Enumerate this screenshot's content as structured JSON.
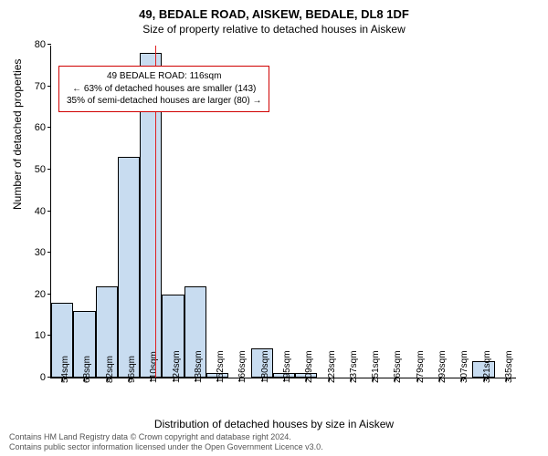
{
  "title": {
    "main": "49, BEDALE ROAD, AISKEW, BEDALE, DL8 1DF",
    "sub": "Size of property relative to detached houses in Aiskew"
  },
  "axes": {
    "ylabel": "Number of detached properties",
    "xlabel": "Distribution of detached houses by size in Aiskew",
    "ylim": [
      0,
      80
    ],
    "ytick_step": 10,
    "label_fontsize": 12,
    "tick_fontsize": 11
  },
  "chart": {
    "type": "histogram",
    "bar_fill": "#c8dcf0",
    "bar_border": "#000000",
    "background_color": "#ffffff",
    "categories": [
      "54sqm",
      "68sqm",
      "82sqm",
      "96sqm",
      "110sqm",
      "124sqm",
      "138sqm",
      "152sqm",
      "166sqm",
      "180sqm",
      "195sqm",
      "209sqm",
      "223sqm",
      "237sqm",
      "251sqm",
      "265sqm",
      "279sqm",
      "293sqm",
      "307sqm",
      "321sqm",
      "335sqm"
    ],
    "values": [
      18,
      16,
      22,
      53,
      78,
      20,
      22,
      1,
      0,
      7,
      1,
      1,
      0,
      0,
      0,
      0,
      0,
      0,
      0,
      4,
      0
    ]
  },
  "marker": {
    "color": "#e02020",
    "position_index": 4.2,
    "annotation": {
      "line1": "49 BEDALE ROAD: 116sqm",
      "line2": "← 63% of detached houses are smaller (143)",
      "line3": "35% of semi-detached houses are larger (80) →"
    },
    "annotation_border": "#d00000"
  },
  "attribution": {
    "line1": "Contains HM Land Registry data © Crown copyright and database right 2024.",
    "line2": "Contains public sector information licensed under the Open Government Licence v3.0."
  }
}
